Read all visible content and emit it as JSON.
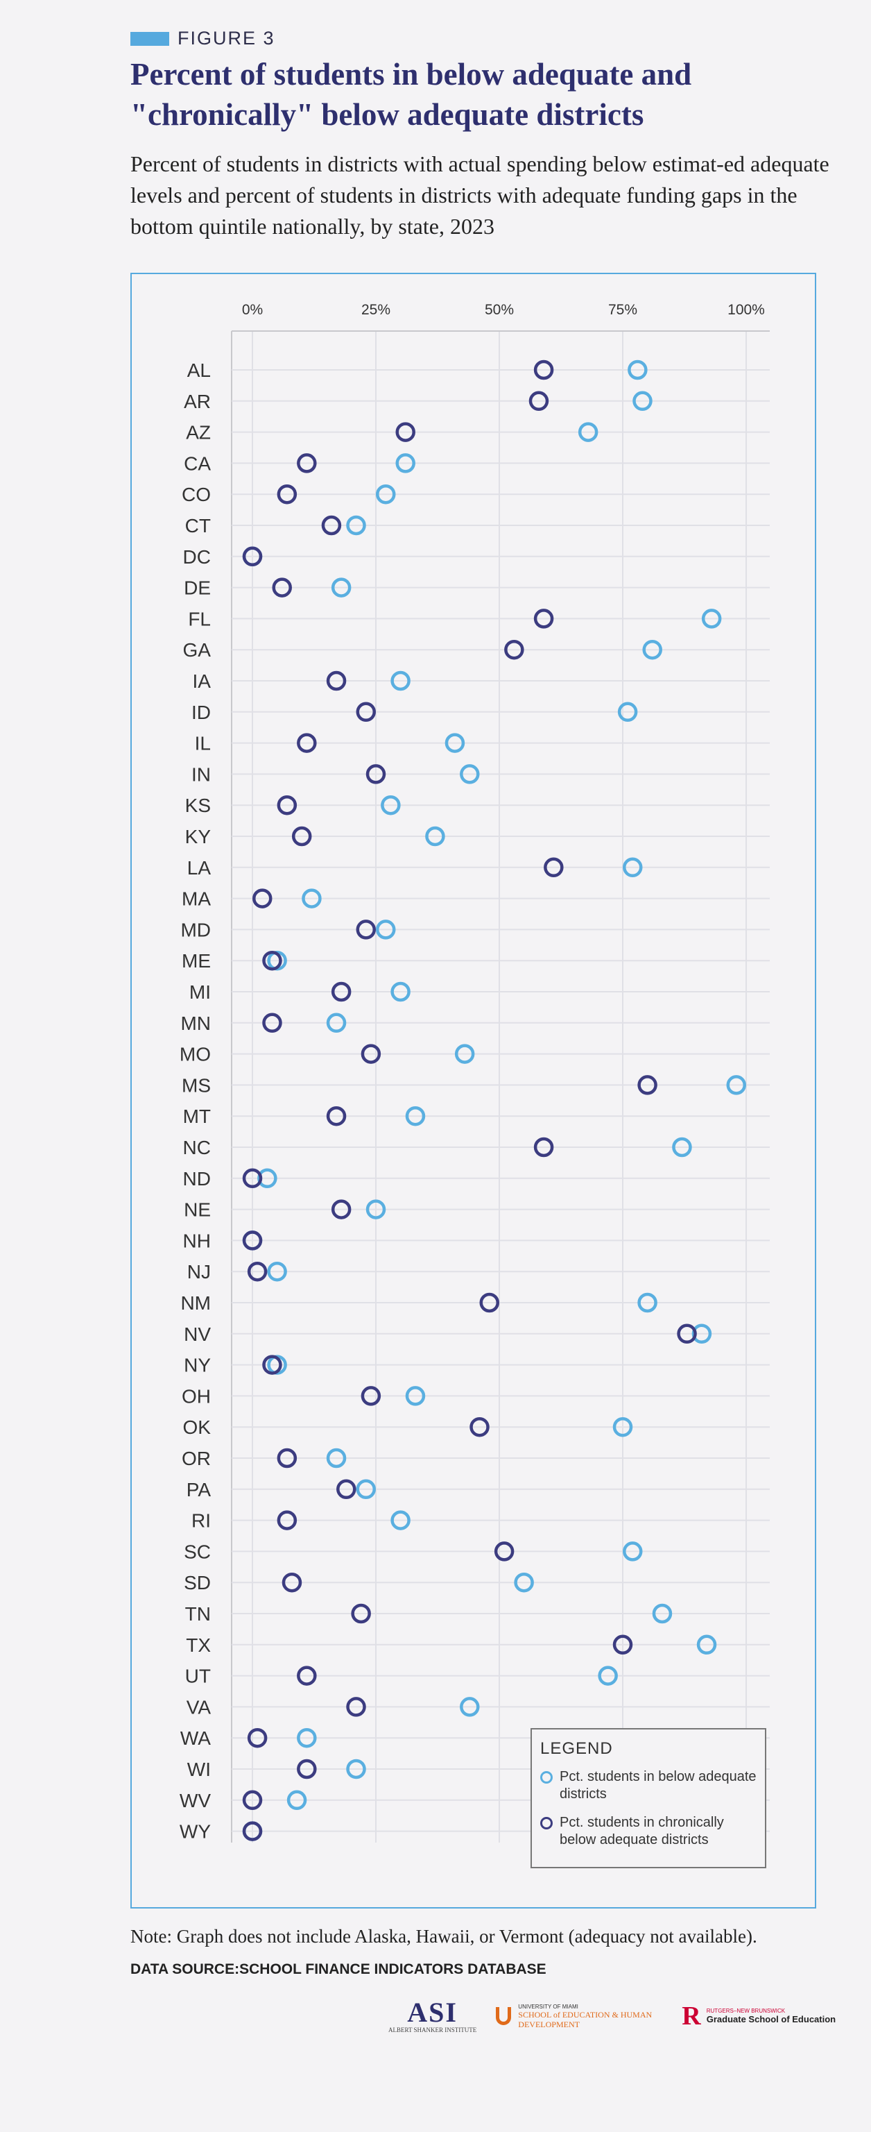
{
  "figure_label": "FIGURE 3",
  "title": "Percent of students in below adequate and \"chronically\" below adequate districts",
  "subtitle": "Percent of students in districts with actual spending below estimat-ed adequate levels and percent of students in districts with adequate funding gaps in the bottom quintile nationally, by state, 2023",
  "colors": {
    "below": "#5aafe0",
    "chronic": "#3c3c80",
    "frame": "#56a9de",
    "grid": "#e0e0e6"
  },
  "legend": {
    "title": "LEGEND",
    "below_label": "Pct. students in below adequate districts",
    "chronic_label": "Pct. students in chronically below adequate districts"
  },
  "chart_data": {
    "type": "scatter",
    "xlim": [
      0,
      100
    ],
    "x_ticks": [
      "0%",
      "25%",
      "50%",
      "75%",
      "100%"
    ],
    "grid": true,
    "legend_position": "bottom-right",
    "categories": [
      "AL",
      "AR",
      "AZ",
      "CA",
      "CO",
      "CT",
      "DC",
      "DE",
      "FL",
      "GA",
      "IA",
      "ID",
      "IL",
      "IN",
      "KS",
      "KY",
      "LA",
      "MA",
      "MD",
      "ME",
      "MI",
      "MN",
      "MO",
      "MS",
      "MT",
      "NC",
      "ND",
      "NE",
      "NH",
      "NJ",
      "NM",
      "NV",
      "NY",
      "OH",
      "OK",
      "OR",
      "PA",
      "RI",
      "SC",
      "SD",
      "TN",
      "TX",
      "UT",
      "VA",
      "WA",
      "WI",
      "WV",
      "WY"
    ],
    "series": [
      {
        "name": "Pct. students in below adequate districts",
        "values": [
          78,
          79,
          68,
          31,
          27,
          21,
          0,
          18,
          93,
          81,
          30,
          76,
          41,
          44,
          28,
          37,
          77,
          12,
          27,
          5,
          30,
          17,
          43,
          98,
          33,
          87,
          3,
          25,
          0,
          5,
          80,
          91,
          5,
          33,
          75,
          17,
          23,
          30,
          77,
          55,
          83,
          92,
          72,
          44,
          11,
          21,
          9,
          0
        ]
      },
      {
        "name": "Pct. students in chronically below adequate districts",
        "values": [
          59,
          58,
          31,
          11,
          7,
          16,
          0,
          6,
          59,
          53,
          17,
          23,
          11,
          25,
          7,
          10,
          61,
          2,
          23,
          4,
          18,
          4,
          24,
          80,
          17,
          59,
          0,
          18,
          0,
          1,
          48,
          88,
          4,
          24,
          46,
          7,
          19,
          7,
          51,
          8,
          22,
          75,
          11,
          21,
          1,
          11,
          0,
          0
        ]
      }
    ]
  },
  "note": "Note: Graph does not include Alaska, Hawaii, or Vermont (adequacy not available).",
  "data_source": "DATA SOURCE:SCHOOL FINANCE INDICATORS DATABASE",
  "logos": {
    "asi": "ASI",
    "asi_sub": "ALBERT SHANKER INSTITUTE",
    "um_top": "UNIVERSITY OF MIAMI",
    "um_name": "SCHOOL of EDUCATION & HUMAN DEVELOPMENT",
    "rutgers_top": "RUTGERS–NEW BRUNSWICK",
    "rutgers_name": "Graduate School of Education"
  }
}
